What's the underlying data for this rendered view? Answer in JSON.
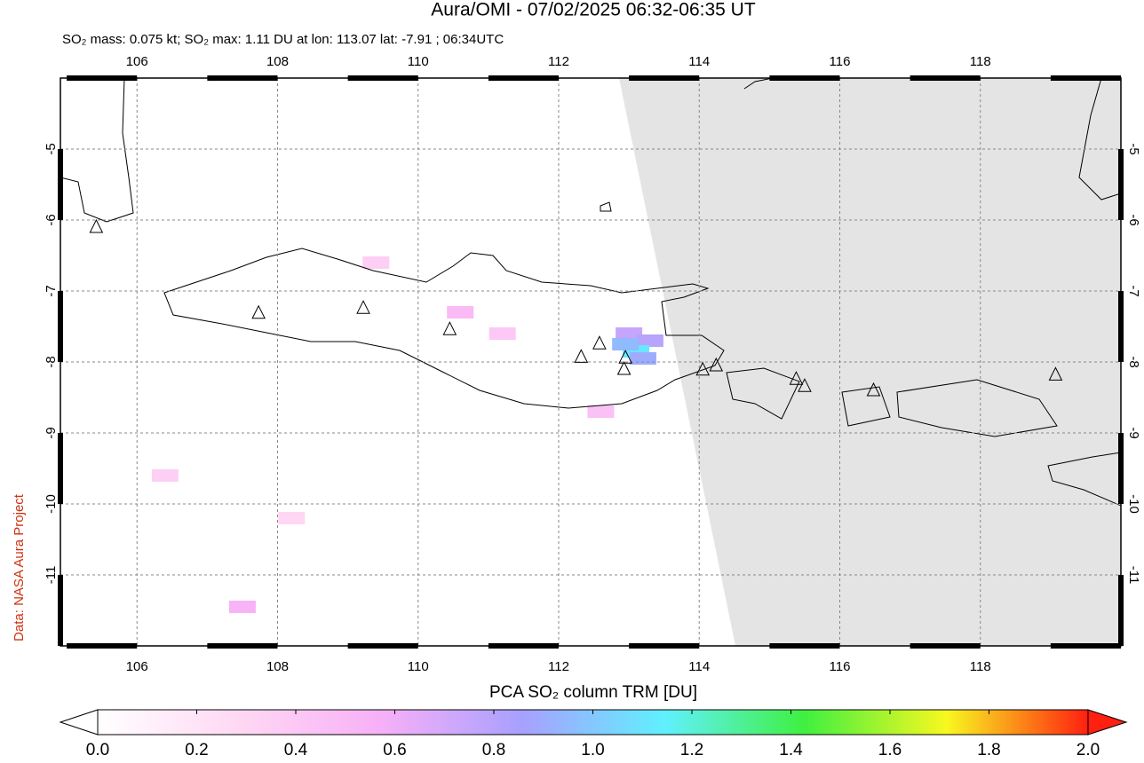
{
  "chart_data": {
    "type": "map",
    "title": "Aura/OMI - 07/02/2025 06:32-06:35 UT",
    "subtitle": "SO₂ mass: 0.075 kt; SO₂ max: 1.11 DU at lon: 113.07 lat: -7.91 ; 06:34UTC",
    "side_label": "Data: NASA Aura Project",
    "xlim": [
      104.91,
      120
    ],
    "ylim": [
      -12,
      -4
    ],
    "xticks": [
      106,
      108,
      110,
      112,
      114,
      116,
      118
    ],
    "yticks": [
      -5,
      -6,
      -7,
      -8,
      -9,
      -10,
      -11
    ],
    "grid": true,
    "volcanoes": {
      "lon": [
        105.42,
        107.73,
        109.22,
        110.45,
        112.32,
        112.58,
        112.95,
        112.93,
        114.05,
        114.24,
        115.38,
        115.5,
        116.48,
        119.07
      ],
      "lat": [
        -6.1,
        -7.31,
        -7.24,
        -7.54,
        -7.93,
        -7.74,
        -7.94,
        -8.1,
        -8.11,
        -8.05,
        -8.24,
        -8.34,
        -8.4,
        -8.18
      ]
    },
    "pixels": {
      "lon": [
        113.0,
        113.3,
        113.1,
        113.2,
        112.95,
        110.6,
        107.5,
        109.4,
        112.6,
        111.2,
        108.2,
        106.4
      ],
      "lat": [
        -7.6,
        -7.7,
        -7.85,
        -7.95,
        -7.75,
        -7.3,
        -11.45,
        -6.6,
        -8.7,
        -7.6,
        -10.2,
        -9.6
      ],
      "values": [
        0.75,
        0.8,
        1.11,
        0.9,
        0.95,
        0.5,
        0.55,
        0.35,
        0.45,
        0.4,
        0.3,
        0.35
      ]
    },
    "colorbar": {
      "label": "PCA SO₂ column TRM [DU]",
      "clim": [
        0,
        2
      ],
      "ticks": [
        {
          "value": 0,
          "label": "0.0"
        },
        0.2,
        0.4,
        0.6,
        0.8,
        {
          "value": 1,
          "label": "1.0"
        },
        1.2,
        1.4,
        1.6,
        1.8,
        {
          "value": 2,
          "label": "2.0"
        }
      ],
      "colormap": [
        "#ffffff",
        "#ffd8f4",
        "#f7b0f7",
        "#a8a0ff",
        "#60f0ff",
        "#40f040",
        "#f8f820",
        "#ff2010"
      ]
    }
  }
}
